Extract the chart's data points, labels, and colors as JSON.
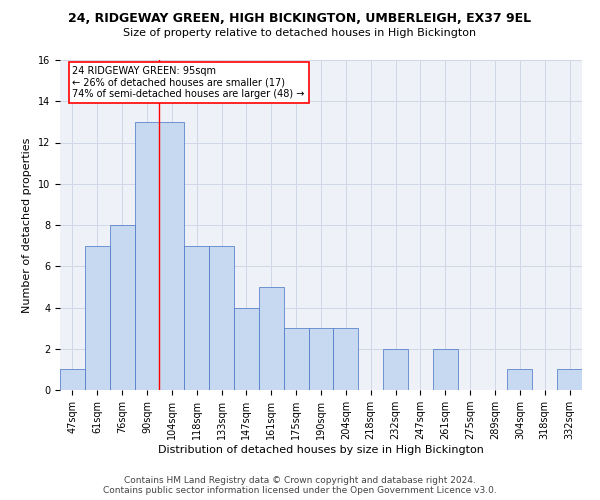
{
  "title": "24, RIDGEWAY GREEN, HIGH BICKINGTON, UMBERLEIGH, EX37 9EL",
  "subtitle": "Size of property relative to detached houses in High Bickington",
  "xlabel": "Distribution of detached houses by size in High Bickington",
  "ylabel": "Number of detached properties",
  "categories": [
    "47sqm",
    "61sqm",
    "76sqm",
    "90sqm",
    "104sqm",
    "118sqm",
    "133sqm",
    "147sqm",
    "161sqm",
    "175sqm",
    "190sqm",
    "204sqm",
    "218sqm",
    "232sqm",
    "247sqm",
    "261sqm",
    "275sqm",
    "289sqm",
    "304sqm",
    "318sqm",
    "332sqm"
  ],
  "values": [
    1,
    7,
    8,
    13,
    13,
    7,
    7,
    4,
    5,
    3,
    3,
    3,
    0,
    2,
    0,
    2,
    0,
    0,
    1,
    0,
    1
  ],
  "bar_color": "#c6d9f0",
  "bar_edge_color": "#4472c4",
  "red_line_x": 3.5,
  "annotation_text": "24 RIDGEWAY GREEN: 95sqm\n← 26% of detached houses are smaller (17)\n74% of semi-detached houses are larger (48) →",
  "annotation_box_color": "white",
  "annotation_box_edge_color": "red",
  "ylim": [
    0,
    16
  ],
  "yticks": [
    0,
    2,
    4,
    6,
    8,
    10,
    12,
    14,
    16
  ],
  "grid_color": "#d0d8e8",
  "background_color": "#eef2f8",
  "footer_line1": "Contains HM Land Registry data © Crown copyright and database right 2024.",
  "footer_line2": "Contains public sector information licensed under the Open Government Licence v3.0.",
  "title_fontsize": 9,
  "subtitle_fontsize": 8,
  "annotation_fontsize": 7,
  "axis_fontsize": 7,
  "ylabel_fontsize": 8,
  "xlabel_fontsize": 8,
  "footer_fontsize": 6.5
}
